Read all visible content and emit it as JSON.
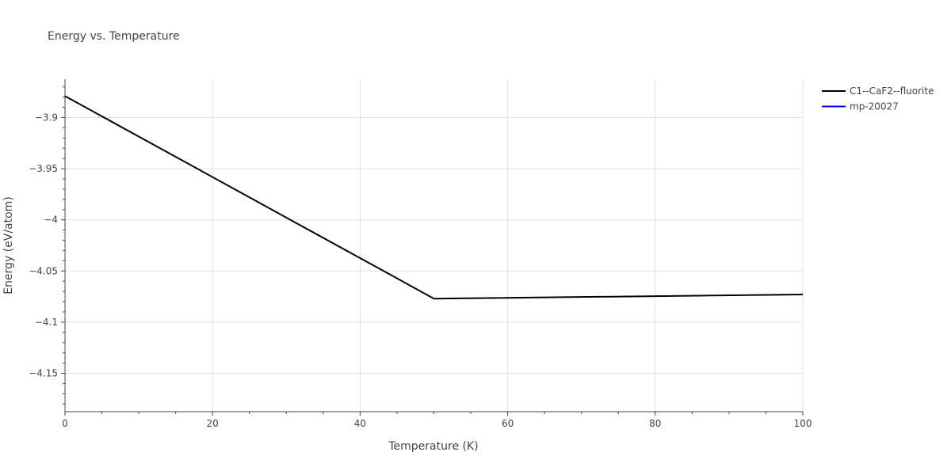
{
  "chart_data": {
    "type": "line",
    "title": "Energy vs. Temperature",
    "xlabel": "Temperature (K)",
    "ylabel": "Energy (eV/atom)",
    "xlim": [
      0,
      100
    ],
    "ylim": [
      -4.1875,
      -3.8625
    ],
    "xticks": [
      0,
      20,
      40,
      60,
      80,
      100
    ],
    "xtick_labels": [
      "0",
      "20",
      "40",
      "60",
      "80",
      "100"
    ],
    "yticks": [
      -3.9,
      -3.95,
      -4.0,
      -4.05,
      -4.1,
      -4.15
    ],
    "ytick_labels": [
      "−3.9",
      "−3.95",
      "−4",
      "−4.05",
      "−4.1",
      "−4.15"
    ],
    "grid": true,
    "legend_position": "top-right",
    "series": [
      {
        "name": "C1--CaF2--fluorite",
        "color": "#000000",
        "x": [
          0,
          50,
          100
        ],
        "y": [
          -3.879,
          -4.077,
          -4.073
        ]
      },
      {
        "name": "mp-20027",
        "color": "#0000ff",
        "x": [],
        "y": []
      }
    ]
  }
}
